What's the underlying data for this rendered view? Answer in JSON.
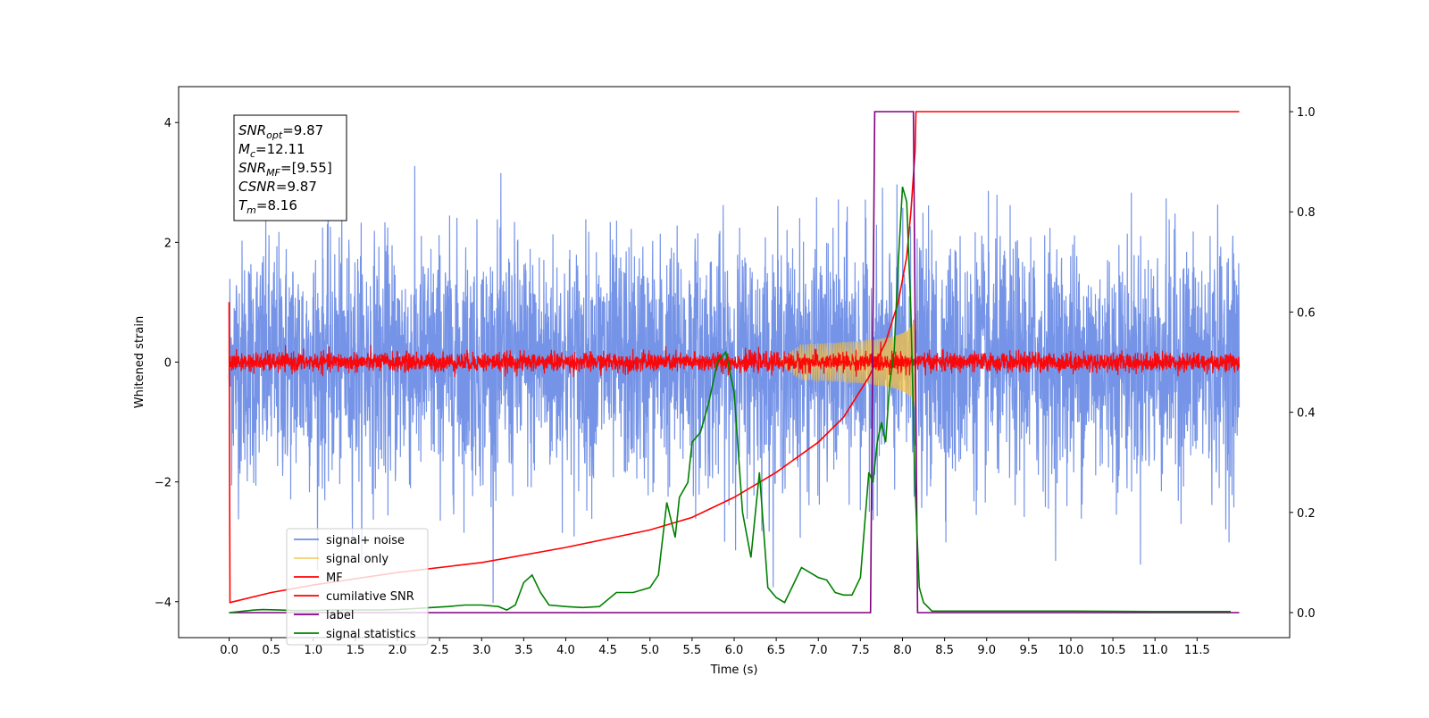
{
  "chart_data": {
    "type": "line",
    "xlabel": "Time (s)",
    "ylabel": "Whitened strain",
    "xlim": [
      -0.6,
      12.6
    ],
    "ylim": [
      -4.6,
      4.6
    ],
    "y2lim": [
      -0.05,
      1.05
    ],
    "x_ticks": [
      0.0,
      0.5,
      1.0,
      1.5,
      2.0,
      2.5,
      3.0,
      3.5,
      4.0,
      4.5,
      5.0,
      5.5,
      6.0,
      6.5,
      7.0,
      7.5,
      8.0,
      8.5,
      9.0,
      9.5,
      10.0,
      10.5,
      11.0,
      11.5
    ],
    "x_tick_labels": [
      "0.0",
      "0.5",
      "1.0",
      "1.5",
      "2.0",
      "2.5",
      "3.0",
      "3.5",
      "4.0",
      "4.5",
      "5.0",
      "5.5",
      "6.0",
      "6.5",
      "7.0",
      "7.5",
      "8.0",
      "8.5",
      "9.0",
      "9.5",
      "10.0",
      "10.5",
      "11.0",
      "11.5"
    ],
    "y_ticks": [
      -4,
      -2,
      0,
      2,
      4
    ],
    "y_tick_labels": [
      "−4",
      "−2",
      "0",
      "2",
      "4"
    ],
    "y2_ticks": [
      0.0,
      0.2,
      0.4,
      0.6,
      0.8,
      1.0
    ],
    "y2_tick_labels": [
      "0.0",
      "0.2",
      "0.4",
      "0.6",
      "0.8",
      "1.0"
    ],
    "grid": false,
    "legend_position": "lower-left",
    "annotation": [
      {
        "sym": "SNR",
        "sub": "opt",
        "rest": "=9.87"
      },
      {
        "sym": "M",
        "sub": "c",
        "rest": "=12.11"
      },
      {
        "sym": "SNR",
        "sub": "MF",
        "rest": "=[9.55]"
      },
      {
        "sym": "CSNR",
        "sub": "",
        "rest": "=9.87"
      },
      {
        "sym": "T",
        "sub": "m",
        "rest": "=8.16"
      }
    ],
    "series": [
      {
        "name": "signal+ noise",
        "color": "#6f8ee6",
        "axis": "left",
        "kind": "noise",
        "x_range": [
          0.0,
          12.0
        ],
        "approx_std": 1.0,
        "approx_peak": 4.15
      },
      {
        "name": "signal only",
        "color": "#f5c242",
        "axis": "left",
        "kind": "chirp",
        "x_range": [
          6.5,
          8.16
        ],
        "approx_max_amplitude": 0.85
      },
      {
        "name": "MF",
        "color": "#ff0000",
        "axis": "left",
        "kind": "noise",
        "x_range": [
          0.0,
          12.0
        ],
        "approx_std": 0.08,
        "approx_peak": 0.4
      },
      {
        "name": "cumilative SNR",
        "color": "#ff0000",
        "axis": "right",
        "x": [
          0.0,
          0.01,
          0.5,
          1.0,
          2.0,
          3.0,
          4.0,
          5.0,
          5.5,
          6.0,
          6.5,
          7.0,
          7.3,
          7.6,
          7.8,
          7.95,
          8.05,
          8.1,
          8.15,
          8.16,
          9.0,
          10.0,
          11.0,
          12.0
        ],
        "values": [
          0.62,
          0.02,
          0.04,
          0.055,
          0.08,
          0.1,
          0.13,
          0.165,
          0.19,
          0.23,
          0.28,
          0.34,
          0.39,
          0.47,
          0.54,
          0.62,
          0.71,
          0.8,
          0.92,
          1.0,
          1.0,
          1.0,
          1.0,
          1.0
        ]
      },
      {
        "name": "label",
        "color": "#800080",
        "axis": "right",
        "x": [
          0.0,
          7.62,
          7.67,
          8.13,
          8.18,
          12.0
        ],
        "values": [
          0.0,
          0.0,
          1.0,
          1.0,
          0.0,
          0.0
        ]
      },
      {
        "name": "signal statistics",
        "color": "#008000",
        "axis": "right",
        "x": [
          0.0,
          0.3,
          0.4,
          0.6,
          0.8,
          1.0,
          1.2,
          1.5,
          1.8,
          2.0,
          2.2,
          2.4,
          2.6,
          2.8,
          3.0,
          3.2,
          3.3,
          3.4,
          3.5,
          3.6,
          3.7,
          3.8,
          4.0,
          4.2,
          4.4,
          4.6,
          4.8,
          5.0,
          5.1,
          5.2,
          5.3,
          5.35,
          5.45,
          5.5,
          5.6,
          5.7,
          5.8,
          5.9,
          6.0,
          6.1,
          6.2,
          6.3,
          6.4,
          6.5,
          6.6,
          6.7,
          6.8,
          6.9,
          7.0,
          7.1,
          7.2,
          7.3,
          7.4,
          7.5,
          7.6,
          7.65,
          7.7,
          7.75,
          7.8,
          7.85,
          7.9,
          7.95,
          8.0,
          8.05,
          8.1,
          8.15,
          8.2,
          8.25,
          8.35,
          9.0,
          10.0,
          11.0,
          11.9
        ],
        "values": [
          0.0,
          0.005,
          0.006,
          0.005,
          0.004,
          0.004,
          0.005,
          0.005,
          0.005,
          0.006,
          0.008,
          0.01,
          0.012,
          0.015,
          0.015,
          0.012,
          0.005,
          0.015,
          0.06,
          0.075,
          0.04,
          0.015,
          0.012,
          0.01,
          0.012,
          0.04,
          0.04,
          0.05,
          0.075,
          0.22,
          0.15,
          0.23,
          0.26,
          0.34,
          0.36,
          0.42,
          0.5,
          0.52,
          0.44,
          0.2,
          0.11,
          0.28,
          0.05,
          0.03,
          0.02,
          0.055,
          0.09,
          0.08,
          0.07,
          0.065,
          0.04,
          0.035,
          0.035,
          0.07,
          0.28,
          0.26,
          0.34,
          0.38,
          0.34,
          0.46,
          0.52,
          0.7,
          0.85,
          0.82,
          0.6,
          0.25,
          0.05,
          0.02,
          0.003,
          0.003,
          0.003,
          0.002,
          0.002
        ]
      }
    ]
  }
}
